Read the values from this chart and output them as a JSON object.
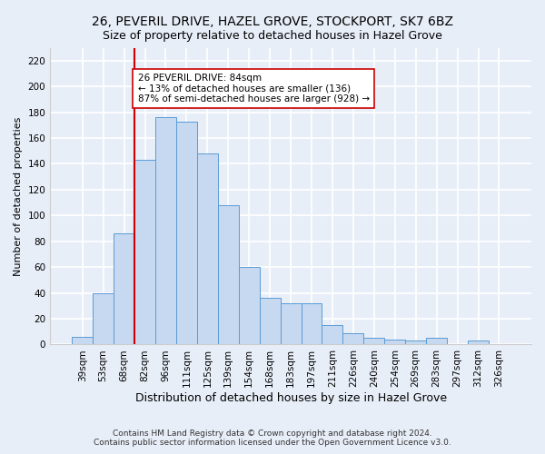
{
  "title1": "26, PEVERIL DRIVE, HAZEL GROVE, STOCKPORT, SK7 6BZ",
  "title2": "Size of property relative to detached houses in Hazel Grove",
  "xlabel": "Distribution of detached houses by size in Hazel Grove",
  "ylabel": "Number of detached properties",
  "footnote1": "Contains HM Land Registry data © Crown copyright and database right 2024.",
  "footnote2": "Contains public sector information licensed under the Open Government Licence v3.0.",
  "bar_labels": [
    "39sqm",
    "53sqm",
    "68sqm",
    "82sqm",
    "96sqm",
    "111sqm",
    "125sqm",
    "139sqm",
    "154sqm",
    "168sqm",
    "183sqm",
    "197sqm",
    "211sqm",
    "226sqm",
    "240sqm",
    "254sqm",
    "269sqm",
    "283sqm",
    "297sqm",
    "312sqm",
    "326sqm"
  ],
  "bar_values": [
    6,
    40,
    86,
    143,
    176,
    173,
    148,
    108,
    60,
    36,
    32,
    32,
    15,
    9,
    5,
    4,
    3,
    5,
    0,
    3,
    0
  ],
  "bar_color": "#c6d9f0",
  "bar_edge_color": "#5b9bd5",
  "vline_color": "#cc0000",
  "vline_x": 2.5,
  "annotation_text": "26 PEVERIL DRIVE: 84sqm\n← 13% of detached houses are smaller (136)\n87% of semi-detached houses are larger (928) →",
  "annotation_box_color": "#ffffff",
  "annotation_box_edge": "#cc0000",
  "background_color": "#e8eef8",
  "grid_color": "#ffffff",
  "title1_fontsize": 10,
  "title2_fontsize": 9,
  "xlabel_fontsize": 9,
  "ylabel_fontsize": 8,
  "tick_fontsize": 7.5,
  "annotation_fontsize": 7.5,
  "footnote_fontsize": 6.5,
  "ylim": [
    0,
    230
  ],
  "yticks": [
    0,
    20,
    40,
    60,
    80,
    100,
    120,
    140,
    160,
    180,
    200,
    220
  ]
}
